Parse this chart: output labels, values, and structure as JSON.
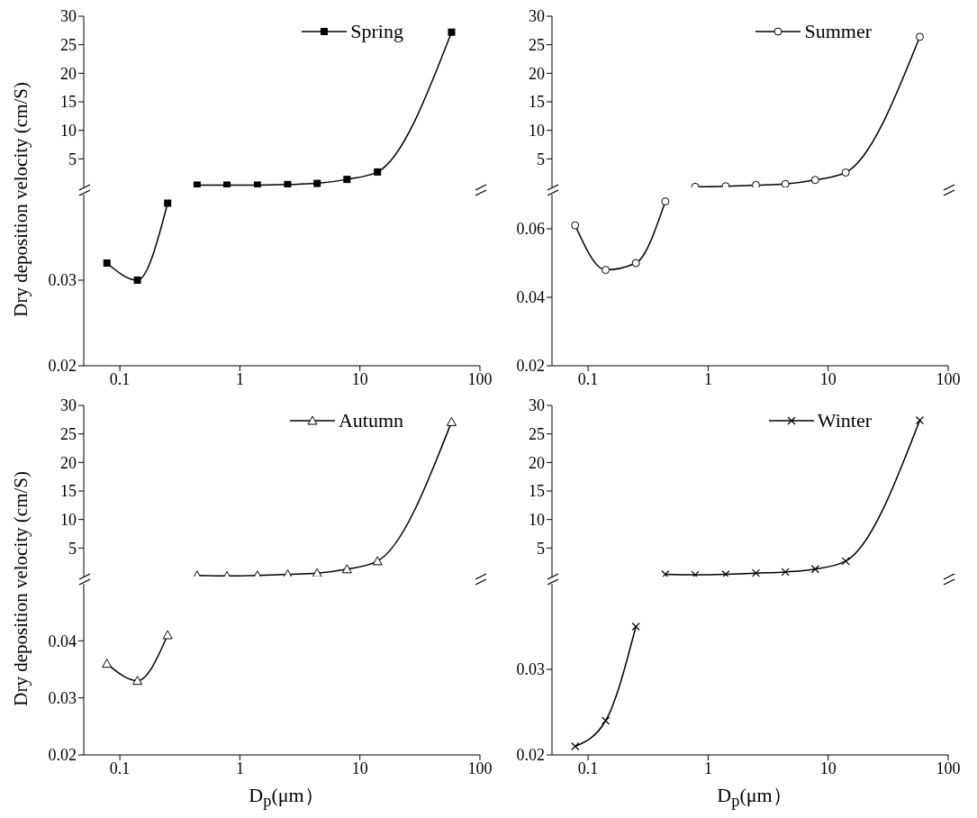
{
  "chart_data": [
    {
      "type": "line",
      "x": [
        0.44,
        0.78,
        1.4,
        2.5,
        4.4,
        7.8,
        14,
        58
      ],
      "series": [
        {
          "name": "Spring",
          "color": "#000000",
          "values": [
            0.4,
            0.4,
            0.4,
            0.5,
            0.7,
            1.4,
            2.7,
            27.2
          ]
        }
      ],
      "xlim": [
        0.05,
        100
      ],
      "xticks": [
        0.1,
        1,
        10,
        100
      ],
      "ylim": [
        0,
        30
      ],
      "yticks": [
        5,
        10,
        15,
        20,
        25,
        30
      ],
      "log": "x",
      "marker": "square",
      "legend": "top right",
      "tick_labels": "y",
      "ylabel": "Dry deposition velocity (cm/S)"
    },
    {
      "type": "line",
      "x": [
        0.078,
        0.14,
        0.25
      ],
      "series": [
        {
          "color": "#000000",
          "values": [
            0.032,
            0.03,
            0.039
          ]
        }
      ],
      "xlim": [
        0.05,
        100
      ],
      "xticks": [
        0.1,
        1,
        10,
        100
      ],
      "ylim": [
        0.02,
        0.04
      ],
      "yticks": [
        0.02,
        0.03
      ],
      "log": "x",
      "marker": "square"
    },
    {
      "type": "line",
      "x": [
        0.78,
        1.4,
        2.5,
        4.4,
        7.8,
        14,
        58
      ],
      "series": [
        {
          "name": "Summer",
          "color": "#000000",
          "values": [
            0.1,
            0.2,
            0.4,
            0.6,
            1.3,
            2.6,
            26.4
          ]
        }
      ],
      "xlim": [
        0.05,
        100
      ],
      "xticks": [
        0.1,
        1,
        10,
        100
      ],
      "ylim": [
        0,
        30
      ],
      "yticks": [
        5,
        10,
        15,
        20,
        25,
        30
      ],
      "log": "x",
      "marker": "circle",
      "legend": "top right",
      "tick_labels": "y"
    },
    {
      "type": "line",
      "x": [
        0.078,
        0.14,
        0.25,
        0.44
      ],
      "series": [
        {
          "color": "#000000",
          "values": [
            0.061,
            0.048,
            0.05,
            0.068
          ]
        }
      ],
      "xlim": [
        0.05,
        100
      ],
      "xticks": [
        0.1,
        1,
        10,
        100
      ],
      "ylim": [
        0.02,
        0.07
      ],
      "yticks": [
        0.02,
        0.04,
        0.06
      ],
      "log": "x",
      "marker": "circle"
    },
    {
      "type": "line",
      "x": [
        0.44,
        0.78,
        1.4,
        2.5,
        4.4,
        7.8,
        14,
        58
      ],
      "series": [
        {
          "name": "Autumn",
          "color": "#000000",
          "values": [
            0.2,
            0.1,
            0.2,
            0.4,
            0.6,
            1.3,
            2.7,
            27.1
          ]
        }
      ],
      "xlim": [
        0.05,
        100
      ],
      "xticks": [
        0.1,
        1,
        10,
        100
      ],
      "ylim": [
        0,
        30
      ],
      "yticks": [
        5,
        10,
        15,
        20,
        25,
        30
      ],
      "log": "x",
      "marker": "triangle",
      "legend": "top right",
      "tick_labels": "y",
      "ylabel": "Dry deposition velocity (cm/S)"
    },
    {
      "type": "line",
      "x": [
        0.078,
        0.14,
        0.25
      ],
      "series": [
        {
          "color": "#000000",
          "values": [
            0.036,
            0.033,
            0.041
          ]
        }
      ],
      "xlim": [
        0.05,
        100
      ],
      "xticks": [
        0.1,
        1,
        10,
        100
      ],
      "ylim": [
        0.02,
        0.05
      ],
      "yticks": [
        0.02,
        0.03,
        0.04
      ],
      "log": "x",
      "marker": "triangle",
      "xlabel": "D$_{p}$(μm）"
    },
    {
      "type": "line",
      "x": [
        0.44,
        0.78,
        1.4,
        2.5,
        4.4,
        7.8,
        14,
        58
      ],
      "series": [
        {
          "name": "Winter",
          "color": "#000000",
          "values": [
            0.4,
            0.3,
            0.4,
            0.6,
            0.8,
            1.3,
            2.7,
            27.4
          ]
        }
      ],
      "xlim": [
        0.05,
        100
      ],
      "xticks": [
        0.1,
        1,
        10,
        100
      ],
      "ylim": [
        0,
        30
      ],
      "yticks": [
        5,
        10,
        15,
        20,
        25,
        30
      ],
      "log": "x",
      "marker": "cross",
      "legend": "top right",
      "tick_labels": "y"
    },
    {
      "type": "line",
      "x": [
        0.078,
        0.14,
        0.25
      ],
      "series": [
        {
          "color": "#000000",
          "values": [
            0.021,
            0.024,
            0.035
          ]
        }
      ],
      "xlim": [
        0.05,
        100
      ],
      "xticks": [
        0.1,
        1,
        10,
        100
      ],
      "ylim": [
        0.02,
        0.04
      ],
      "yticks": [
        0.02,
        0.03
      ],
      "log": "x",
      "marker": "cross",
      "xlabel": "D$_{p}$(μm）"
    }
  ]
}
